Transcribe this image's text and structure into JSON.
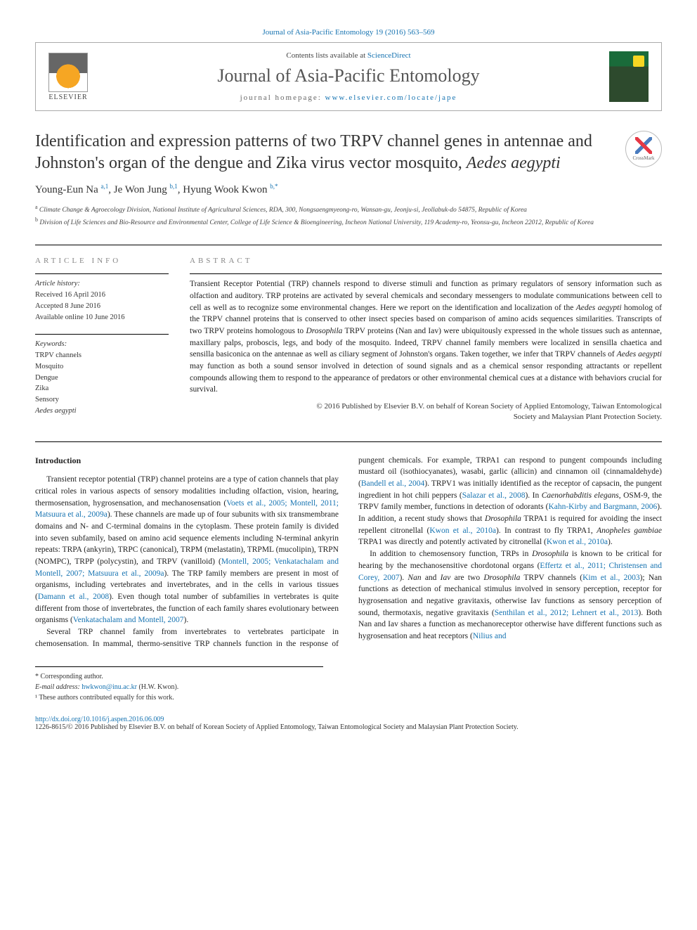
{
  "top_link": "Journal of Asia-Pacific Entomology 19 (2016) 563–569",
  "header": {
    "contents_prefix": "Contents lists available at ",
    "contents_link": "ScienceDirect",
    "journal_name": "Journal of Asia-Pacific Entomology",
    "homepage_prefix": "journal homepage: ",
    "homepage_url": "www.elsevier.com/locate/jape",
    "elsevier": "ELSEVIER"
  },
  "crossmark": "CrossMark",
  "title": "Identification and expression patterns of two TRPV channel genes in antennae and Johnston's organ of the dengue and Zika virus vector mosquito, ",
  "title_italic": "Aedes aegypti",
  "authors": [
    {
      "name": "Young-Eun Na ",
      "sup": "a,1"
    },
    {
      "name": ", Je Won Jung ",
      "sup": "b,1"
    },
    {
      "name": ", Hyung Wook Kwon ",
      "sup": "b,*"
    }
  ],
  "affiliations": [
    {
      "sup": "a",
      "text": " Climate Change & Agroecology Division, National Institute of Agricultural Sciences, RDA, 300, Nongsaengmyeong-ro, Wansan-gu, Jeonju-si, Jeollabuk-do 54875, Republic of Korea"
    },
    {
      "sup": "b",
      "text": " Division of Life Sciences and Bio-Resource and Environmental Center, College of Life Science & Bioengineering, Incheon National University, 119 Academy-ro, Yeonsu-gu, Incheon 22012, Republic of Korea"
    }
  ],
  "info": {
    "label": "article info",
    "history_label": "Article history:",
    "history": [
      "Received 16 April 2016",
      "Accepted 8 June 2016",
      "Available online 10 June 2016"
    ],
    "keywords_label": "Keywords:",
    "keywords": [
      {
        "text": "TRPV channels",
        "italic": false
      },
      {
        "text": "Mosquito",
        "italic": false
      },
      {
        "text": "Dengue",
        "italic": false
      },
      {
        "text": "Zika",
        "italic": false
      },
      {
        "text": "Sensory",
        "italic": false
      },
      {
        "text": "Aedes aegypti",
        "italic": true
      }
    ]
  },
  "abstract": {
    "label": "abstract",
    "text_parts": [
      {
        "t": "Transient Receptor Potential (TRP) channels respond to diverse stimuli and function as primary regulators of sensory information such as olfaction and auditory. TRP proteins are activated by several chemicals and secondary messengers to modulate communications between cell to cell as well as to recognize some environmental changes. Here we report on the identification and localization of the "
      },
      {
        "t": "Aedes aegypti",
        "italic": true
      },
      {
        "t": " homolog of the TRPV channel proteins that is conserved to other insect species based on comparison of amino acids sequences similarities. Transcripts of two TRPV proteins homologous to "
      },
      {
        "t": "Drosophila",
        "italic": true
      },
      {
        "t": " TRPV proteins (Nan and Iav) were ubiquitously expressed in the whole tissues such as antennae, maxillary palps, proboscis, legs, and body of the mosquito. Indeed, TRPV channel family members were localized in sensilla chaetica and sensilla basiconica on the antennae as well as ciliary segment of Johnston's organs. Taken together, we infer that TRPV channels of "
      },
      {
        "t": "Aedes aegypti",
        "italic": true
      },
      {
        "t": " may function as both a sound sensor involved in detection of sound signals and as a chemical sensor responding attractants or repellent compounds allowing them to respond to the appearance of predators or other environmental chemical cues at a distance with behaviors crucial for survival."
      }
    ],
    "copyright1": "© 2016 Published by Elsevier B.V. on behalf of Korean Society of Applied Entomology, Taiwan Entomological",
    "copyright2": "Society and Malaysian Plant Protection Society."
  },
  "body": {
    "intro_heading": "Introduction",
    "p1_parts": [
      {
        "t": "Transient receptor potential (TRP) channel proteins are a type of cation channels that play critical roles in various aspects of sensory modalities including olfaction, vision, hearing, thermosensation, hygrosensation, and mechanosensation ("
      },
      {
        "t": "Voets et al., 2005; Montell, 2011; Matsuura et al., 2009a",
        "link": true
      },
      {
        "t": "). These channels are made up of four subunits with six transmembrane domains and N- and C-terminal domains in the cytoplasm. These protein family is divided into seven subfamily, based on amino acid sequence elements including N-terminal ankyrin repeats: TRPA (ankyrin), TRPC (canonical), TRPM (melastatin), TRPML (mucolipin), TRPN (NOMPC), TRPP (polycystin), and TRPV (vanilloid) ("
      },
      {
        "t": "Montell, 2005; Venkatachalam and Montell, 2007; Matsuura et al., 2009a",
        "link": true
      },
      {
        "t": "). The TRP family members are present in most of organisms, including vertebrates and invertebrates, and in the cells in various tissues ("
      },
      {
        "t": "Damann et al., 2008",
        "link": true
      },
      {
        "t": "). Even though total number of subfamilies in vertebrates is quite different from those of invertebrates, the function of each family shares evolutionary between organisms ("
      },
      {
        "t": "Venkatachalam and Montell, 2007",
        "link": true
      },
      {
        "t": ")."
      }
    ],
    "p2_parts": [
      {
        "t": "Several TRP channel family from invertebrates to vertebrates participate in chemosensation. In mammal, thermo-sensitive TRP channels function in the response of pungent chemicals. For example, TRPA1 can respond to pungent compounds including mustard oil (isothiocyanates), wasabi, garlic (allicin) and cinnamon oil (cinnamaldehyde) ("
      },
      {
        "t": "Bandell et al., 2004",
        "link": true
      },
      {
        "t": "). TRPV1 was initially identified as the receptor of capsacin, the pungent ingredient in hot chili peppers ("
      },
      {
        "t": "Salazar et al., 2008",
        "link": true
      },
      {
        "t": "). In "
      },
      {
        "t": "Caenorhabditis elegans",
        "italic": true
      },
      {
        "t": ", OSM-9, the TRPV family member, functions in detection of odorants ("
      },
      {
        "t": "Kahn-Kirby and Bargmann, 2006",
        "link": true
      },
      {
        "t": "). In addition, a recent study shows that "
      },
      {
        "t": "Drosophila",
        "italic": true
      },
      {
        "t": " TRPA1 is required for avoiding the insect repellent citronellal ("
      },
      {
        "t": "Kwon et al., 2010a",
        "link": true
      },
      {
        "t": "). In contrast to fly TRPA1, "
      },
      {
        "t": "Anopheles gambiae",
        "italic": true
      },
      {
        "t": " TRPA1 was directly and potently activated by citronellal ("
      },
      {
        "t": "Kwon et al., 2010a",
        "link": true
      },
      {
        "t": ")."
      }
    ],
    "p3_parts": [
      {
        "t": "In addition to chemosensory function, TRPs in "
      },
      {
        "t": "Drosophila",
        "italic": true
      },
      {
        "t": " is known to be critical for hearing by the mechanosensitive chordotonal organs ("
      },
      {
        "t": "Effertz et al., 2011; Christensen and Corey, 2007",
        "link": true
      },
      {
        "t": "). "
      },
      {
        "t": "Nan",
        "italic": true
      },
      {
        "t": " and "
      },
      {
        "t": "Iav",
        "italic": true
      },
      {
        "t": " are two "
      },
      {
        "t": "Drosophila",
        "italic": true
      },
      {
        "t": " TRPV channels ("
      },
      {
        "t": "Kim et al., 2003",
        "link": true
      },
      {
        "t": "); Nan functions as detection of mechanical stimulus involved in sensory perception, receptor for hygrosensation and negative gravitaxis, otherwise Iav functions as sensory perception of sound, thermotaxis, negative gravitaxis ("
      },
      {
        "t": "Senthilan et al., 2012; Lehnert et al., 2013",
        "link": true
      },
      {
        "t": "). Both Nan and Iav shares a function as mechanoreceptor otherwise have different functions such as hygrosensation and heat receptors ("
      },
      {
        "t": "Nilius and",
        "link": true
      }
    ]
  },
  "footnotes": {
    "corr": "* Corresponding author.",
    "email_label": "E-mail address: ",
    "email": "hwkwon@inu.ac.kr",
    "email_suffix": " (H.W. Kwon).",
    "equal": "¹ These authors contributed equally for this work."
  },
  "footer": {
    "doi": "http://dx.doi.org/10.1016/j.aspen.2016.06.009",
    "issn": "1226-8615/© 2016 Published by Elsevier B.V. on behalf of Korean Society of Applied Entomology, Taiwan Entomological Society and Malaysian Plant Protection Society."
  },
  "colors": {
    "link": "#1673b1",
    "text": "#222222",
    "muted": "#888888",
    "border": "#000000"
  }
}
